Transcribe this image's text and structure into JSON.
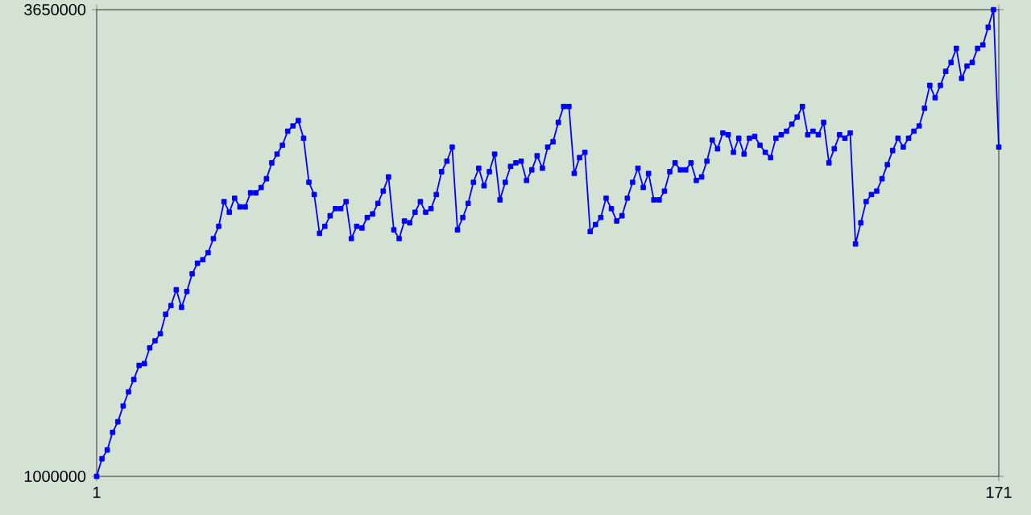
{
  "chart_data": {
    "type": "line",
    "x": [
      1,
      2,
      3,
      4,
      5,
      6,
      7,
      8,
      9,
      10,
      11,
      12,
      13,
      14,
      15,
      16,
      17,
      18,
      19,
      20,
      21,
      22,
      23,
      24,
      25,
      26,
      27,
      28,
      29,
      30,
      31,
      32,
      33,
      34,
      35,
      36,
      37,
      38,
      39,
      40,
      41,
      42,
      43,
      44,
      45,
      46,
      47,
      48,
      49,
      50,
      51,
      52,
      53,
      54,
      55,
      56,
      57,
      58,
      59,
      60,
      61,
      62,
      63,
      64,
      65,
      66,
      67,
      68,
      69,
      70,
      71,
      72,
      73,
      74,
      75,
      76,
      77,
      78,
      79,
      80,
      81,
      82,
      83,
      84,
      85,
      86,
      87,
      88,
      89,
      90,
      91,
      92,
      93,
      94,
      95,
      96,
      97,
      98,
      99,
      100,
      101,
      102,
      103,
      104,
      105,
      106,
      107,
      108,
      109,
      110,
      111,
      112,
      113,
      114,
      115,
      116,
      117,
      118,
      119,
      120,
      121,
      122,
      123,
      124,
      125,
      126,
      127,
      128,
      129,
      130,
      131,
      132,
      133,
      134,
      135,
      136,
      137,
      138,
      139,
      140,
      141,
      142,
      143,
      144,
      145,
      146,
      147,
      148,
      149,
      150,
      151,
      152,
      153,
      154,
      155,
      156,
      157,
      158,
      159,
      160,
      161,
      162,
      163,
      164,
      165,
      166,
      167,
      168,
      169,
      170,
      171
    ],
    "series": [
      {
        "color": "#0000ff",
        "values": [
          1000000,
          1100000,
          1150000,
          1250000,
          1310000,
          1400000,
          1480000,
          1550000,
          1630000,
          1640000,
          1730000,
          1770000,
          1810000,
          1920000,
          1970000,
          2060000,
          1960000,
          2050000,
          2150000,
          2210000,
          2230000,
          2270000,
          2350000,
          2420000,
          2560000,
          2500000,
          2580000,
          2530000,
          2530000,
          2610000,
          2610000,
          2640000,
          2690000,
          2780000,
          2830000,
          2880000,
          2960000,
          2990000,
          3020000,
          2920000,
          2670000,
          2600000,
          2380000,
          2420000,
          2480000,
          2520000,
          2520000,
          2560000,
          2350000,
          2420000,
          2410000,
          2470000,
          2490000,
          2550000,
          2620000,
          2700000,
          2400000,
          2350000,
          2450000,
          2440000,
          2500000,
          2560000,
          2500000,
          2520000,
          2600000,
          2730000,
          2790000,
          2870000,
          2400000,
          2470000,
          2550000,
          2670000,
          2750000,
          2650000,
          2730000,
          2830000,
          2570000,
          2670000,
          2760000,
          2780000,
          2790000,
          2680000,
          2740000,
          2820000,
          2750000,
          2870000,
          2900000,
          3010000,
          3100000,
          3100000,
          2720000,
          2810000,
          2840000,
          2390000,
          2430000,
          2470000,
          2580000,
          2520000,
          2450000,
          2480000,
          2580000,
          2670000,
          2750000,
          2640000,
          2720000,
          2570000,
          2570000,
          2620000,
          2730000,
          2780000,
          2740000,
          2740000,
          2780000,
          2680000,
          2700000,
          2790000,
          2910000,
          2860000,
          2950000,
          2940000,
          2840000,
          2920000,
          2830000,
          2920000,
          2930000,
          2880000,
          2840000,
          2810000,
          2920000,
          2940000,
          2960000,
          3000000,
          3040000,
          3100000,
          2940000,
          2960000,
          2940000,
          3010000,
          2780000,
          2860000,
          2940000,
          2920000,
          2950000,
          2320000,
          2440000,
          2560000,
          2600000,
          2620000,
          2690000,
          2770000,
          2850000,
          2920000,
          2870000,
          2920000,
          2960000,
          2990000,
          3090000,
          3220000,
          3150000,
          3220000,
          3300000,
          3350000,
          3430000,
          3260000,
          3330000,
          3350000,
          3430000,
          3450000,
          3550000,
          3650000,
          2870000
        ]
      }
    ],
    "xlim": [
      1,
      171
    ],
    "xticks": [
      1,
      171
    ],
    "ylim": [
      1000000,
      3650000
    ],
    "yticks": [
      1000000,
      3650000
    ],
    "marker": "square",
    "line_style": "solid"
  }
}
